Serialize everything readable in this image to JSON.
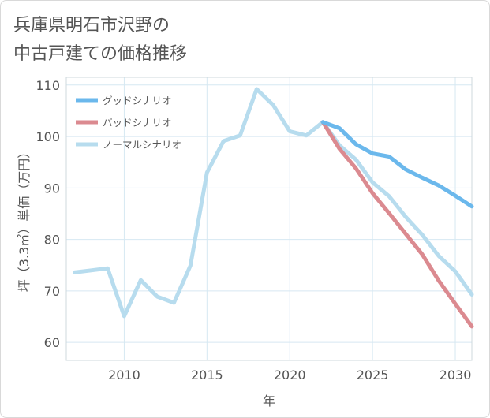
{
  "title_lines": [
    "兵庫県明石市沢野の",
    "中古戸建ての価格推移"
  ],
  "chart_data": {
    "type": "line",
    "title": "兵庫県明石市沢野の中古戸建ての価格推移",
    "xlabel": "年",
    "ylabel": "坪（3.3㎡）単価（万円）",
    "xlim": [
      2006.5,
      2031
    ],
    "ylim": [
      56.5,
      111.5
    ],
    "xticks": [
      2010,
      2015,
      2020,
      2025,
      2030
    ],
    "yticks": [
      60,
      70,
      80,
      90,
      100,
      110
    ],
    "grid": true,
    "legend_position": "top-left",
    "series": [
      {
        "name": "グッドシナリオ",
        "color": "#6bb8ec",
        "x": [
          2022,
          2023,
          2024,
          2025,
          2026,
          2027,
          2028,
          2029,
          2030,
          2031
        ],
        "values": [
          102.8,
          101.6,
          98.5,
          96.7,
          96.1,
          93.6,
          92.0,
          90.5,
          88.5,
          86.4
        ]
      },
      {
        "name": "バッドシナリオ",
        "color": "#db8a90",
        "x": [
          2022,
          2023,
          2024,
          2025,
          2026,
          2027,
          2028,
          2029,
          2030,
          2031
        ],
        "values": [
          102.8,
          97.6,
          93.8,
          89.0,
          85.1,
          81.1,
          77.1,
          72.0,
          67.5,
          63.1
        ]
      },
      {
        "name": "ノーマルシナリオ",
        "color": "#b7dcee",
        "x": [
          2007,
          2008,
          2009,
          2010,
          2011,
          2012,
          2013,
          2014,
          2015,
          2016,
          2017,
          2018,
          2019,
          2020,
          2021,
          2022,
          2023,
          2024,
          2025,
          2026,
          2027,
          2028,
          2029,
          2030,
          2031
        ],
        "values": [
          73.6,
          74.0,
          74.4,
          65.1,
          72.1,
          68.9,
          67.7,
          74.9,
          93.0,
          99.1,
          100.2,
          109.2,
          106.1,
          101.0,
          100.2,
          102.8,
          98.3,
          95.5,
          91.1,
          88.4,
          84.4,
          80.9,
          76.8,
          73.8,
          69.3
        ]
      }
    ]
  }
}
